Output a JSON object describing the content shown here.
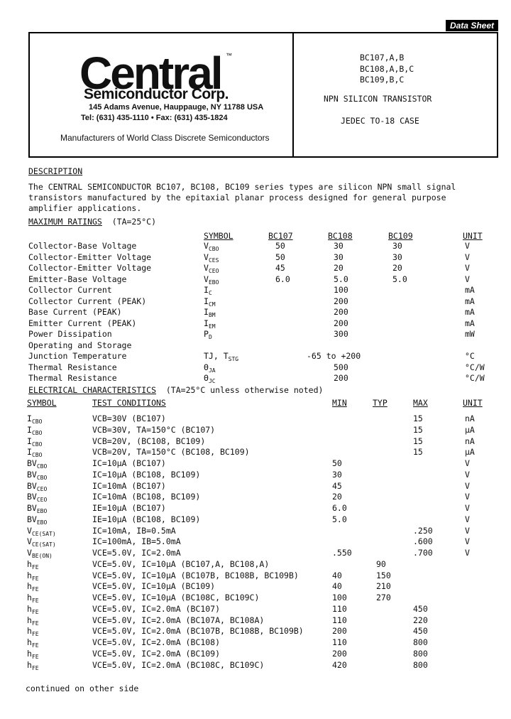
{
  "header": {
    "tag": "Data Sheet",
    "logo_main": "Central",
    "logo_tm": "™",
    "logo_sub": "Semiconductor Corp.",
    "address": "145 Adams Avenue, Hauppauge, NY  11788  USA",
    "phone": "Tel: (631) 435-1110  •  Fax: (631) 435-1824",
    "tagline": "Manufacturers of World Class Discrete Semiconductors",
    "parts": [
      "BC107,A,B",
      "BC108,A,B,C",
      "BC109,B,C"
    ],
    "type": "NPN SILICON TRANSISTOR",
    "case": "JEDEC TO-18 CASE"
  },
  "description": {
    "heading": "DESCRIPTION",
    "text": [
      "The CENTRAL SEMICONDUCTOR BC107, BC108, BC109 series types are silicon NPN small signal",
      "transistors manufactured by the epitaxial planar process designed for general purpose",
      "amplifier applications."
    ]
  },
  "max_ratings": {
    "heading": "MAXIMUM RATINGS",
    "condition": "(TA=25°C)",
    "columns": [
      "SYMBOL",
      "BC107",
      "BC108",
      "BC109",
      "UNIT"
    ],
    "rows": [
      {
        "param": "Collector-Base Voltage",
        "sym": "V",
        "sub": "CBO",
        "bc107": "50",
        "bc108": "30",
        "bc109": "30",
        "unit": "V"
      },
      {
        "param": "Collector-Emitter Voltage",
        "sym": "V",
        "sub": "CES",
        "bc107": "50",
        "bc108": "30",
        "bc109": "30",
        "unit": "V"
      },
      {
        "param": "Collector-Emitter Voltage",
        "sym": "V",
        "sub": "CEO",
        "bc107": "45",
        "bc108": "20",
        "bc109": "20",
        "unit": "V"
      },
      {
        "param": "Emitter-Base Voltage",
        "sym": "V",
        "sub": "EBO",
        "bc107": "6.0",
        "bc108": "5.0",
        "bc109": "5.0",
        "unit": "V"
      },
      {
        "param": "Collector Current",
        "sym": "I",
        "sub": "C",
        "bc107": "",
        "bc108": "100",
        "bc109": "",
        "unit": "mA"
      },
      {
        "param": "Collector Current (PEAK)",
        "sym": "I",
        "sub": "CM",
        "bc107": "",
        "bc108": "200",
        "bc109": "",
        "unit": "mA"
      },
      {
        "param": "Base Current (PEAK)",
        "sym": "I",
        "sub": "BM",
        "bc107": "",
        "bc108": "200",
        "bc109": "",
        "unit": "mA"
      },
      {
        "param": "Emitter Current (PEAK)",
        "sym": "I",
        "sub": "EM",
        "bc107": "",
        "bc108": "200",
        "bc109": "",
        "unit": "mA"
      },
      {
        "param": "Power Dissipation",
        "sym": "P",
        "sub": "D",
        "bc107": "",
        "bc108": "300",
        "bc109": "",
        "unit": "mW"
      },
      {
        "param": "Operating and Storage",
        "sym": "",
        "sub": "",
        "bc107": "",
        "bc108": "",
        "bc109": "",
        "unit": ""
      },
      {
        "param": "Junction Temperature",
        "sym": "TJ, T",
        "sub": "STG",
        "bc107": "",
        "bc108": "-65 to +200",
        "bc109": "",
        "unit": "°C"
      },
      {
        "param": "Thermal Resistance",
        "sym": "Θ",
        "sub": "JA",
        "bc107": "",
        "bc108": "500",
        "bc109": "",
        "unit": "°C/W"
      },
      {
        "param": "Thermal Resistance",
        "sym": "Θ",
        "sub": "JC",
        "bc107": "",
        "bc108": "200",
        "bc109": "",
        "unit": "°C/W"
      }
    ]
  },
  "electrical": {
    "heading": "ELECTRICAL CHARACTERISTICS",
    "condition": "(TA=25°C unless otherwise noted)",
    "columns": [
      "SYMBOL",
      "TEST CONDITIONS",
      "MIN",
      "TYP",
      "MAX",
      "UNIT"
    ],
    "rows": [
      {
        "sym": "I",
        "sub": "CBO",
        "cond": "VCB=30V (BC107)",
        "min": "",
        "typ": "",
        "max": "15",
        "unit": "nA"
      },
      {
        "sym": "I",
        "sub": "CBO",
        "cond": "VCB=30V, TA=150°C (BC107)",
        "min": "",
        "typ": "",
        "max": "15",
        "unit": "µA"
      },
      {
        "sym": "I",
        "sub": "CBO",
        "cond": "VCB=20V, (BC108, BC109)",
        "min": "",
        "typ": "",
        "max": "15",
        "unit": "nA"
      },
      {
        "sym": "I",
        "sub": "CBO",
        "cond": "VCB=20V, TA=150°C (BC108, BC109)",
        "min": "",
        "typ": "",
        "max": "15",
        "unit": "µA"
      },
      {
        "sym": "BV",
        "sub": "CBO",
        "cond": "IC=10µA (BC107)",
        "min": "50",
        "typ": "",
        "max": "",
        "unit": "V"
      },
      {
        "sym": "BV",
        "sub": "CBO",
        "cond": "IC=10µA (BC108, BC109)",
        "min": "30",
        "typ": "",
        "max": "",
        "unit": "V"
      },
      {
        "sym": "BV",
        "sub": "CEO",
        "cond": "IC=10mA (BC107)",
        "min": "45",
        "typ": "",
        "max": "",
        "unit": "V"
      },
      {
        "sym": "BV",
        "sub": "CEO",
        "cond": "IC=10mA (BC108, BC109)",
        "min": "20",
        "typ": "",
        "max": "",
        "unit": "V"
      },
      {
        "sym": "BV",
        "sub": "EBO",
        "cond": "IE=10µA (BC107)",
        "min": "6.0",
        "typ": "",
        "max": "",
        "unit": "V"
      },
      {
        "sym": "BV",
        "sub": "EBO",
        "cond": "IE=10µA (BC108, BC109)",
        "min": "5.0",
        "typ": "",
        "max": "",
        "unit": "V"
      },
      {
        "sym": "V",
        "sub": "CE(SAT)",
        "cond": "IC=10mA, IB=0.5mA",
        "min": "",
        "typ": "",
        "max": ".250",
        "unit": "V"
      },
      {
        "sym": "V",
        "sub": "CE(SAT)",
        "cond": "IC=100mA, IB=5.0mA",
        "min": "",
        "typ": "",
        "max": ".600",
        "unit": "V"
      },
      {
        "sym": "V",
        "sub": "BE(ON)",
        "cond": "VCE=5.0V, IC=2.0mA",
        "min": ".550",
        "typ": "",
        "max": ".700",
        "unit": "V"
      },
      {
        "sym": "h",
        "sub": "FE",
        "cond": "VCE=5.0V, IC=10µA (BC107,A, BC108,A)",
        "min": "",
        "typ": "90",
        "max": "",
        "unit": ""
      },
      {
        "sym": "h",
        "sub": "FE",
        "cond": "VCE=5.0V, IC=10µA (BC107B, BC108B, BC109B)",
        "min": "40",
        "typ": "150",
        "max": "",
        "unit": ""
      },
      {
        "sym": "h",
        "sub": "FE",
        "cond": "VCE=5.0V, IC=10µA (BC109)",
        "min": "40",
        "typ": "210",
        "max": "",
        "unit": ""
      },
      {
        "sym": "h",
        "sub": "FE",
        "cond": "VCE=5.0V, IC=10µA (BC108C, BC109C)",
        "min": "100",
        "typ": "270",
        "max": "",
        "unit": ""
      },
      {
        "sym": "h",
        "sub": "FE",
        "cond": "VCE=5.0V, IC=2.0mA (BC107)",
        "min": "110",
        "typ": "",
        "max": "450",
        "unit": ""
      },
      {
        "sym": "h",
        "sub": "FE",
        "cond": "VCE=5.0V, IC=2.0mA (BC107A, BC108A)",
        "min": "110",
        "typ": "",
        "max": "220",
        "unit": ""
      },
      {
        "sym": "h",
        "sub": "FE",
        "cond": "VCE=5.0V, IC=2.0mA (BC107B, BC108B, BC109B)",
        "min": "200",
        "typ": "",
        "max": "450",
        "unit": ""
      },
      {
        "sym": "h",
        "sub": "FE",
        "cond": "VCE=5.0V, IC=2.0mA (BC108)",
        "min": "110",
        "typ": "",
        "max": "800",
        "unit": ""
      },
      {
        "sym": "h",
        "sub": "FE",
        "cond": "VCE=5.0V, IC=2.0mA (BC109)",
        "min": "200",
        "typ": "",
        "max": "800",
        "unit": ""
      },
      {
        "sym": "h",
        "sub": "FE",
        "cond": "VCE=5.0V, IC=2.0mA (BC108C, BC109C)",
        "min": "420",
        "typ": "",
        "max": "800",
        "unit": ""
      }
    ]
  },
  "footer": "continued on other side"
}
